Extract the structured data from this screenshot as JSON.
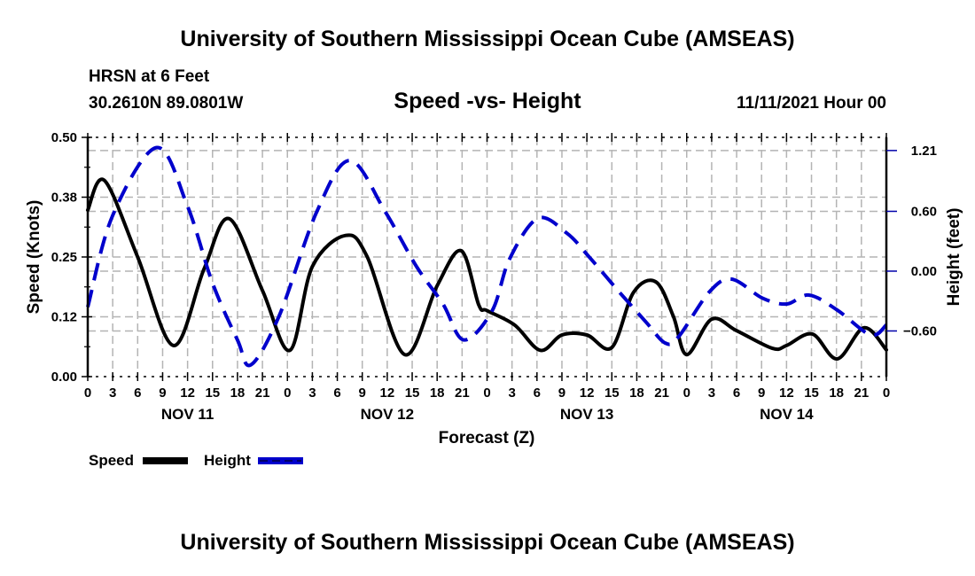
{
  "header": {
    "title": "University of Southern Mississippi Ocean Cube (AMSEAS)",
    "station": "HRSN at 6 Feet",
    "coordinates": "30.2610N  89.0801W",
    "subtitle": "Speed -vs- Height",
    "run_time": "11/11/2021 Hour 00"
  },
  "footer": {
    "title": "University of Southern Mississippi Ocean Cube (AMSEAS)"
  },
  "chart_data": {
    "type": "line",
    "title": "Speed -vs- Height",
    "xlabel": "Forecast (Z)",
    "ylabel": "Speed (Knots)",
    "y2label": "Height (feet)",
    "xlim_hours": [
      0,
      96
    ],
    "ylim": [
      0,
      0.5
    ],
    "y2lim": [
      -1.058,
      1.342
    ],
    "grid": true,
    "x_tick_labels": [
      "0",
      "3",
      "6",
      "9",
      "12",
      "15",
      "18",
      "21",
      "0",
      "3",
      "6",
      "9",
      "12",
      "15",
      "18",
      "21",
      "0",
      "3",
      "6",
      "9",
      "12",
      "15",
      "18",
      "21",
      "0",
      "3",
      "6",
      "9",
      "12",
      "15",
      "18",
      "21",
      "0"
    ],
    "date_labels": [
      {
        "label": "NOV 11",
        "hour": 12
      },
      {
        "label": "NOV 12",
        "hour": 36
      },
      {
        "label": "NOV 13",
        "hour": 60
      },
      {
        "label": "NOV 14",
        "hour": 84
      }
    ],
    "y_ticks": [
      {
        "value": 0.0,
        "label": "0.00"
      },
      {
        "value": 0.125,
        "label": "0.12"
      },
      {
        "value": 0.25,
        "label": "0.25"
      },
      {
        "value": 0.375,
        "label": "0.38"
      },
      {
        "value": 0.5,
        "label": "0.50"
      }
    ],
    "y2_ticks": [
      {
        "value": -0.6,
        "label": "−0.60"
      },
      {
        "value": 0.0,
        "label": "0.00"
      },
      {
        "value": 0.6,
        "label": "0.60"
      },
      {
        "value": 1.21,
        "label": "1.21"
      }
    ],
    "legend_position": "bottom-left",
    "series": [
      {
        "name": "Speed",
        "axis": "left",
        "color": "#000000",
        "style": "solid",
        "points": [
          [
            0,
            0.348
          ],
          [
            2,
            0.41
          ],
          [
            6,
            0.25
          ],
          [
            10.3,
            0.065
          ],
          [
            14,
            0.226
          ],
          [
            17,
            0.33
          ],
          [
            21,
            0.18
          ],
          [
            24.3,
            0.055
          ],
          [
            27,
            0.23
          ],
          [
            31,
            0.295
          ],
          [
            33.6,
            0.25
          ],
          [
            38.1,
            0.046
          ],
          [
            42,
            0.19
          ],
          [
            44.9,
            0.263
          ],
          [
            47,
            0.15
          ],
          [
            48,
            0.138
          ],
          [
            51.3,
            0.108
          ],
          [
            54.4,
            0.055
          ],
          [
            57,
            0.087
          ],
          [
            60,
            0.087
          ],
          [
            63,
            0.061
          ],
          [
            65.6,
            0.176
          ],
          [
            68.3,
            0.198
          ],
          [
            70.4,
            0.126
          ],
          [
            72,
            0.046
          ],
          [
            75,
            0.12
          ],
          [
            78,
            0.096
          ],
          [
            82.3,
            0.059
          ],
          [
            84,
            0.065
          ],
          [
            87.1,
            0.089
          ],
          [
            90.1,
            0.037
          ],
          [
            93.3,
            0.102
          ],
          [
            96,
            0.056
          ]
        ]
      },
      {
        "name": "Height",
        "axis": "right",
        "color": "#0000cc",
        "style": "dashed",
        "points": [
          [
            0,
            -0.36
          ],
          [
            3,
            0.56
          ],
          [
            8.3,
            1.24
          ],
          [
            12,
            0.65
          ],
          [
            15,
            -0.12
          ],
          [
            18,
            -0.69
          ],
          [
            19.6,
            -0.94
          ],
          [
            23,
            -0.45
          ],
          [
            27.5,
            0.59
          ],
          [
            31.5,
            1.11
          ],
          [
            35.8,
            0.59
          ],
          [
            39.5,
            0.05
          ],
          [
            42.7,
            -0.33
          ],
          [
            45.2,
            -0.69
          ],
          [
            48.6,
            -0.4
          ],
          [
            50.7,
            0.12
          ],
          [
            54.1,
            0.53
          ],
          [
            57.6,
            0.38
          ],
          [
            60.3,
            0.14
          ],
          [
            63.9,
            -0.21
          ],
          [
            67.1,
            -0.51
          ],
          [
            69.4,
            -0.72
          ],
          [
            71,
            -0.66
          ],
          [
            74.7,
            -0.21
          ],
          [
            77.4,
            -0.08
          ],
          [
            81.1,
            -0.27
          ],
          [
            84,
            -0.33
          ],
          [
            86.7,
            -0.24
          ],
          [
            90.1,
            -0.39
          ],
          [
            94.1,
            -0.64
          ],
          [
            96,
            -0.54
          ]
        ]
      }
    ]
  }
}
